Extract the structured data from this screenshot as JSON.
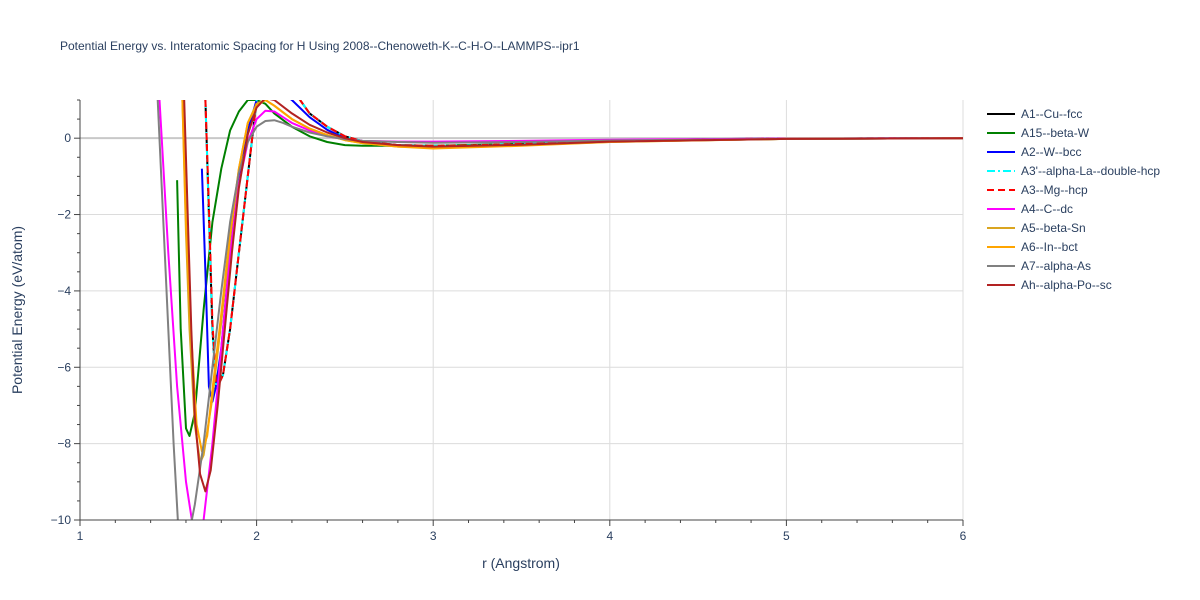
{
  "chart_data": {
    "type": "line",
    "title": "Potential Energy vs. Interatomic Spacing for H Using 2008--Chenoweth-K--C-H-O--LAMMPS--ipr1",
    "xlabel": "r (Angstrom)",
    "ylabel": "Potential Energy (eV/atom)",
    "xlim": [
      1,
      6
    ],
    "ylim": [
      -10,
      1
    ],
    "xticks": [
      1,
      2,
      3,
      4,
      5,
      6
    ],
    "xtick_labels": [
      "1",
      "2",
      "3",
      "4",
      "5",
      "6"
    ],
    "yticks": [
      -10,
      -8,
      -6,
      -4,
      -2,
      0
    ],
    "ytick_labels": [
      "−10",
      "−8",
      "−6",
      "−4",
      "−2",
      "0"
    ],
    "grid": true,
    "legend_position": "right",
    "series": [
      {
        "name": "A1--Cu--fcc",
        "color": "#000000",
        "dash": "solid",
        "x": [
          1.71,
          1.73,
          1.75,
          1.77,
          1.79,
          1.81,
          1.85,
          1.9,
          2.0,
          2.1,
          2.2,
          2.3,
          2.4,
          2.5,
          2.6,
          2.8,
          3.0,
          3.2,
          3.5,
          4.0,
          4.5,
          5.0,
          6.0
        ],
        "y": [
          1.0,
          -2.0,
          -5.0,
          -6.5,
          -6.4,
          -6.2,
          -5.0,
          -3.0,
          1.0,
          2.5,
          1.3,
          0.65,
          0.3,
          0.05,
          -0.08,
          -0.18,
          -0.2,
          -0.19,
          -0.15,
          -0.08,
          -0.03,
          -0.01,
          0.0
        ]
      },
      {
        "name": "A15--beta-W",
        "color": "#008000",
        "dash": "solid",
        "x": [
          1.55,
          1.57,
          1.6,
          1.62,
          1.65,
          1.7,
          1.75,
          1.8,
          1.85,
          1.9,
          1.95,
          2.0,
          2.05,
          2.1,
          2.2,
          2.3,
          2.4,
          2.5,
          2.6,
          3.0,
          3.5,
          4.0,
          5.0,
          6.0
        ],
        "y": [
          -1.1,
          -5.0,
          -7.6,
          -7.8,
          -7.2,
          -4.5,
          -2.2,
          -0.8,
          0.2,
          0.7,
          1.0,
          1.0,
          0.9,
          0.65,
          0.3,
          0.05,
          -0.1,
          -0.18,
          -0.2,
          -0.2,
          -0.15,
          -0.08,
          -0.02,
          0.0
        ]
      },
      {
        "name": "A2--W--bcc",
        "color": "#0000ff",
        "dash": "solid",
        "x": [
          1.69,
          1.71,
          1.73,
          1.75,
          1.77,
          1.8,
          1.85,
          1.9,
          1.95,
          2.0,
          2.1,
          2.2,
          2.3,
          2.4,
          2.5,
          2.6,
          2.8,
          3.0,
          3.5,
          4.0,
          5.0,
          6.0
        ],
        "y": [
          -0.8,
          -3.5,
          -6.5,
          -6.9,
          -6.5,
          -5.5,
          -3.0,
          -1.0,
          0.2,
          1.0,
          1.3,
          1.0,
          0.55,
          0.22,
          0.0,
          -0.12,
          -0.2,
          -0.22,
          -0.17,
          -0.09,
          -0.02,
          0.0
        ]
      },
      {
        "name": "A3'--alpha-La--double-hcp",
        "color": "#00ffff",
        "dash": "dashdot",
        "x": [
          1.71,
          1.73,
          1.75,
          1.77,
          1.79,
          1.81,
          1.85,
          1.9,
          2.0,
          2.1,
          2.2,
          2.3,
          2.4,
          2.5,
          2.6,
          2.8,
          3.0,
          3.2,
          3.5,
          4.0,
          4.5,
          5.0,
          6.0
        ],
        "y": [
          1.0,
          -2.1,
          -5.1,
          -6.5,
          -6.4,
          -6.2,
          -5.0,
          -3.0,
          1.0,
          2.5,
          1.3,
          0.65,
          0.3,
          0.05,
          -0.08,
          -0.18,
          -0.2,
          -0.19,
          -0.15,
          -0.08,
          -0.03,
          -0.01,
          0.0
        ]
      },
      {
        "name": "A3--Mg--hcp",
        "color": "#ff0000",
        "dash": "dash",
        "x": [
          1.71,
          1.73,
          1.75,
          1.77,
          1.79,
          1.81,
          1.85,
          1.9,
          2.0,
          2.1,
          2.2,
          2.3,
          2.4,
          2.5,
          2.6,
          2.8,
          3.0,
          3.2,
          3.5,
          4.0,
          4.5,
          5.0,
          6.0
        ],
        "y": [
          1.0,
          -1.8,
          -4.8,
          -6.4,
          -6.4,
          -6.2,
          -5.0,
          -3.0,
          1.0,
          2.5,
          1.3,
          0.65,
          0.3,
          0.05,
          -0.08,
          -0.18,
          -0.2,
          -0.19,
          -0.15,
          -0.08,
          -0.03,
          -0.01,
          0.0
        ]
      },
      {
        "name": "A4--C--dc",
        "color": "#ff00ff",
        "dash": "solid",
        "x": [
          1.45,
          1.5,
          1.55,
          1.6,
          1.65,
          1.7,
          1.75,
          1.8,
          1.85,
          1.9,
          1.95,
          2.0,
          2.05,
          2.1,
          2.15,
          2.2,
          2.3,
          2.4,
          2.5,
          2.6,
          2.8,
          3.0,
          3.5,
          4.0,
          5.0,
          6.0
        ],
        "y": [
          1.0,
          -3.0,
          -6.5,
          -9.0,
          -10.5,
          -10.0,
          -8.0,
          -5.5,
          -3.0,
          -1.2,
          -0.1,
          0.5,
          0.72,
          0.7,
          0.55,
          0.4,
          0.2,
          0.05,
          -0.03,
          -0.07,
          -0.09,
          -0.09,
          -0.07,
          -0.04,
          -0.01,
          0.0
        ]
      },
      {
        "name": "A5--beta-Sn",
        "color": "#daa520",
        "dash": "solid",
        "x": [
          1.58,
          1.6,
          1.62,
          1.65,
          1.68,
          1.7,
          1.75,
          1.8,
          1.85,
          1.9,
          1.95,
          2.0,
          2.05,
          2.1,
          2.2,
          2.3,
          2.4,
          2.5,
          2.6,
          2.8,
          3.0,
          3.5,
          4.0,
          5.0,
          6.0
        ],
        "y": [
          1.0,
          -2.5,
          -5.0,
          -7.5,
          -8.5,
          -8.3,
          -6.8,
          -4.8,
          -2.6,
          -0.8,
          0.4,
          0.9,
          1.0,
          0.85,
          0.5,
          0.25,
          0.08,
          -0.05,
          -0.13,
          -0.22,
          -0.25,
          -0.18,
          -0.1,
          -0.02,
          0.0
        ]
      },
      {
        "name": "A6--In--bct",
        "color": "#ffa500",
        "dash": "solid",
        "x": [
          1.58,
          1.6,
          1.63,
          1.66,
          1.69,
          1.72,
          1.75,
          1.8,
          1.85,
          1.9,
          1.95,
          2.0,
          2.05,
          2.1,
          2.2,
          2.3,
          2.4,
          2.5,
          2.6,
          2.8,
          3.0,
          3.5,
          4.0,
          5.0,
          6.0
        ],
        "y": [
          1.0,
          -2.2,
          -5.2,
          -7.5,
          -8.2,
          -7.8,
          -6.6,
          -4.6,
          -2.5,
          -0.8,
          0.4,
          0.85,
          1.0,
          0.85,
          0.5,
          0.25,
          0.08,
          -0.05,
          -0.13,
          -0.22,
          -0.27,
          -0.2,
          -0.1,
          -0.02,
          0.0
        ]
      },
      {
        "name": "A7--alpha-As",
        "color": "#808080",
        "dash": "solid",
        "x": [
          1.44,
          1.47,
          1.5,
          1.53,
          1.56,
          1.6,
          1.65,
          1.7,
          1.75,
          1.8,
          1.85,
          1.9,
          1.95,
          2.0,
          2.05,
          2.1,
          2.15,
          2.2,
          2.3,
          2.4,
          2.5,
          2.6,
          2.8,
          3.0,
          3.5,
          4.0,
          5.0,
          6.0
        ],
        "y": [
          1.0,
          -2.0,
          -5.0,
          -8.0,
          -10.5,
          -10.8,
          -9.6,
          -8.0,
          -6.0,
          -4.0,
          -2.2,
          -0.9,
          -0.1,
          0.3,
          0.45,
          0.47,
          0.4,
          0.3,
          0.15,
          0.05,
          -0.03,
          -0.07,
          -0.1,
          -0.12,
          -0.1,
          -0.06,
          -0.02,
          0.0
        ]
      },
      {
        "name": "Ah--alpha-Po--sc",
        "color": "#b22222",
        "dash": "solid",
        "x": [
          1.59,
          1.61,
          1.63,
          1.65,
          1.68,
          1.71,
          1.74,
          1.78,
          1.82,
          1.86,
          1.9,
          1.95,
          2.0,
          2.05,
          2.1,
          2.2,
          2.3,
          2.4,
          2.5,
          2.6,
          2.8,
          3.0,
          3.5,
          4.0,
          5.0,
          6.0
        ],
        "y": [
          1.0,
          -2.0,
          -5.0,
          -7.3,
          -8.8,
          -9.25,
          -8.7,
          -7.0,
          -5.0,
          -3.0,
          -1.3,
          0.1,
          0.8,
          1.05,
          1.0,
          0.65,
          0.35,
          0.15,
          0.0,
          -0.1,
          -0.18,
          -0.22,
          -0.17,
          -0.09,
          -0.02,
          0.0
        ]
      }
    ]
  }
}
